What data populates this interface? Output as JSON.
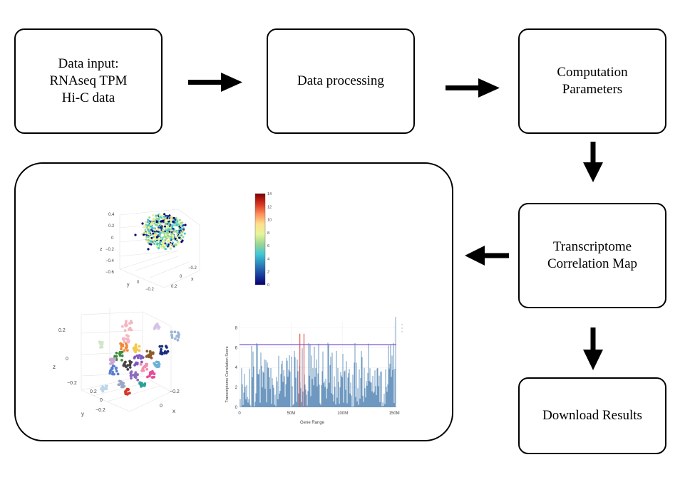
{
  "boxes": {
    "input": "Data input:\nRNAseq TPM\nHi-C data",
    "processing": "Data processing",
    "parameters": "Computation\nParameters",
    "correlation": "Transcriptome\nCorrelation Map",
    "download": "Download Results"
  },
  "scatter_top": {
    "z_ticks": [
      "0.4",
      "0.2",
      "0",
      "−0.2",
      "−0.4",
      "−0.6"
    ],
    "z_label": "z",
    "y_ticks": [
      "0",
      "−0.2"
    ],
    "y_label": "y",
    "x_ticks": [
      "−0.2",
      "0",
      "0.2"
    ],
    "x_label": "x"
  },
  "colorbar": {
    "ticks": [
      "14",
      "12",
      "10",
      "8",
      "6",
      "4",
      "2",
      "0"
    ],
    "colors": [
      "#7f0000",
      "#d7301f",
      "#fc8d59",
      "#fee08b",
      "#e6f598",
      "#99d594",
      "#3ec8d6",
      "#2b83ba",
      "#1a3fa0",
      "#08006e"
    ]
  },
  "scatter_bottom": {
    "z_ticks": [
      "0.2",
      "0",
      "−0.2"
    ],
    "z_label": "z",
    "y_ticks": [
      "0.2",
      "0",
      "−0.2"
    ],
    "y_label": "y",
    "x_ticks": [
      "−0.2",
      "0"
    ],
    "x_label": "x"
  },
  "chart_data": {
    "type": "bar",
    "xlabel": "Gene Range",
    "ylabel": "Transcriptome Correlation Score",
    "x_ticks": [
      "0",
      "50M",
      "100M",
      "150M"
    ],
    "y_ticks": [
      "0",
      "2",
      "4",
      "6",
      "8"
    ],
    "xlim": [
      0,
      152000000
    ],
    "ylim": [
      0,
      8.6
    ],
    "threshold": 6.3,
    "bar_color": "#4a7fb0",
    "highlight_color": "#e8534a",
    "threshold_color": "#7b4fd0",
    "highlight_positions": [
      58500000,
      62500000
    ],
    "highlight_values": [
      7.4,
      7.4
    ],
    "end_spike": 9.1
  }
}
